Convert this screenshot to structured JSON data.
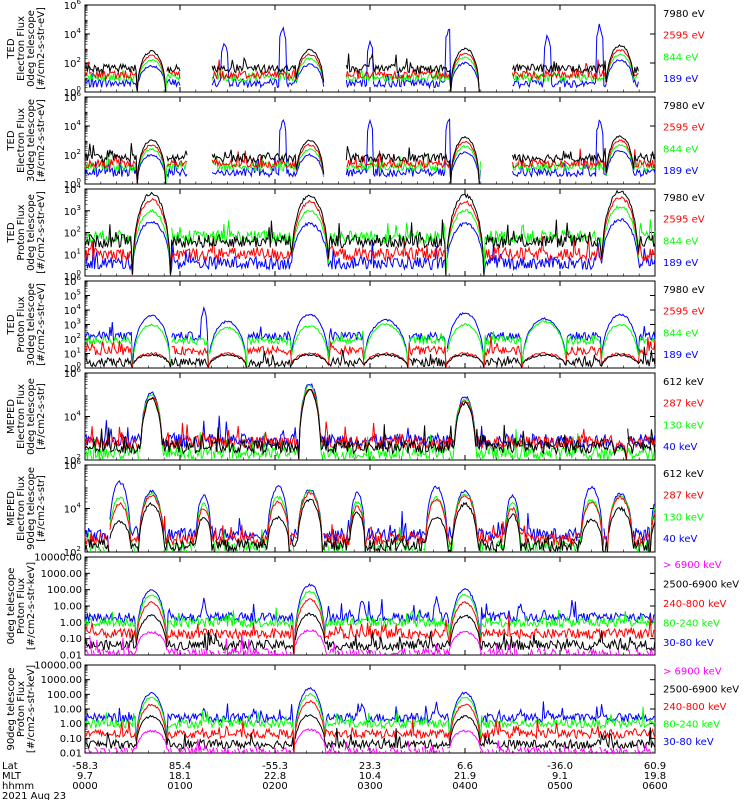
{
  "colors": {
    "black": "#000000",
    "blue": "#0000ff",
    "red": "#ff0000",
    "green": "#00ff00",
    "magenta": "#ff00ff"
  },
  "chart_data": [
    {
      "type": "line",
      "ylabel": [
        "TED",
        "Electron Flux",
        "0deg telescope",
        "[#/cm2-s-str-eV]"
      ],
      "y_scale": "log",
      "ylim": [
        1,
        1000000
      ],
      "y_ticks": [
        {
          "exp": 0,
          "v": 1
        },
        {
          "exp": 2,
          "v": 100
        },
        {
          "exp": 4,
          "v": 10000
        },
        {
          "exp": 6,
          "v": 1000000
        }
      ],
      "legend": [
        {
          "label": "7980 eV",
          "color": "black"
        },
        {
          "label": "2595 eV",
          "color": "red"
        },
        {
          "label": "844 eV",
          "color": "green"
        },
        {
          "label": "189 eV",
          "color": "blue"
        }
      ],
      "humps": [
        {
          "t": 42,
          "w": 9,
          "p": [
            2.8,
            2.5,
            2.2,
            1.8
          ]
        },
        {
          "t": 142,
          "w": 9,
          "p": [
            2.9,
            2.6,
            2.3,
            1.9
          ]
        },
        {
          "t": 240,
          "w": 9,
          "p": [
            3.0,
            2.7,
            2.4,
            2.0
          ]
        },
        {
          "t": 338,
          "w": 9,
          "p": [
            3.2,
            2.9,
            2.6,
            2.2
          ]
        }
      ],
      "spikes": [
        {
          "t": 88,
          "v": 3.6
        },
        {
          "t": 125,
          "v": 4.6
        },
        {
          "t": 180,
          "v": 3.7
        },
        {
          "t": 230,
          "v": 4.7
        },
        {
          "t": 292,
          "v": 4.0
        },
        {
          "t": 325,
          "v": 4.8
        },
        {
          "t": 332,
          "v": 4.2
        }
      ],
      "base": [
        1.6,
        1.2,
        1.0,
        0.6
      ],
      "active": [
        [
          0,
          60
        ],
        [
          80,
          140
        ],
        [
          165,
          240
        ],
        [
          270,
          350
        ]
      ]
    },
    {
      "type": "line",
      "ylabel": [
        "TED",
        "Electron Flux",
        "30deg telescope",
        "[#/cm2-s-str-eV]"
      ],
      "y_scale": "log",
      "ylim": [
        1,
        1000000
      ],
      "y_ticks": [
        {
          "exp": 0,
          "v": 1
        },
        {
          "exp": 2,
          "v": 100
        },
        {
          "exp": 4,
          "v": 10000
        },
        {
          "exp": 6,
          "v": 1000000
        }
      ],
      "legend": [
        {
          "label": "7980 eV",
          "color": "black"
        },
        {
          "label": "2595 eV",
          "color": "red"
        },
        {
          "label": "844 eV",
          "color": "green"
        },
        {
          "label": "189 eV",
          "color": "blue"
        }
      ],
      "humps": [
        {
          "t": 42,
          "w": 9,
          "p": [
            3.0,
            2.7,
            2.4,
            2.0
          ]
        },
        {
          "t": 142,
          "w": 9,
          "p": [
            3.0,
            2.7,
            2.4,
            2.0
          ]
        },
        {
          "t": 240,
          "w": 9,
          "p": [
            3.2,
            2.9,
            2.6,
            2.2
          ]
        },
        {
          "t": 338,
          "w": 9,
          "p": [
            3.3,
            3.0,
            2.7,
            2.3
          ]
        }
      ],
      "spikes": [
        {
          "t": 125,
          "v": 4.6
        },
        {
          "t": 180,
          "v": 4.5
        },
        {
          "t": 230,
          "v": 4.8
        },
        {
          "t": 245,
          "v": 3.8
        },
        {
          "t": 325,
          "v": 4.5
        }
      ],
      "base": [
        1.8,
        1.4,
        1.2,
        0.8
      ],
      "active": [
        [
          0,
          65
        ],
        [
          80,
          150
        ],
        [
          165,
          250
        ],
        [
          270,
          360
        ]
      ]
    },
    {
      "type": "line",
      "ylabel": [
        "TED",
        "Proton Flux",
        "0deg telescope",
        "[#/cm2-s-str-eV]"
      ],
      "y_scale": "log",
      "ylim": [
        1,
        10000
      ],
      "y_ticks": [
        {
          "exp": 0,
          "v": 1
        },
        {
          "exp": 1,
          "v": 10
        },
        {
          "exp": 2,
          "v": 100
        },
        {
          "exp": 3,
          "v": 1000
        },
        {
          "exp": 4,
          "v": 10000
        }
      ],
      "legend": [
        {
          "label": "7980 eV",
          "color": "black"
        },
        {
          "label": "2595 eV",
          "color": "red"
        },
        {
          "label": "844 eV",
          "color": "green"
        },
        {
          "label": "189 eV",
          "color": "blue"
        }
      ],
      "humps": [
        {
          "t": 42,
          "w": 12,
          "p": [
            3.8,
            3.5,
            3.0,
            2.5
          ]
        },
        {
          "t": 142,
          "w": 12,
          "p": [
            3.7,
            3.4,
            3.0,
            2.4
          ]
        },
        {
          "t": 240,
          "w": 12,
          "p": [
            3.7,
            3.4,
            3.0,
            2.4
          ]
        },
        {
          "t": 338,
          "w": 12,
          "p": [
            3.9,
            3.6,
            3.2,
            2.6
          ]
        }
      ],
      "spikes": [],
      "base": [
        1.6,
        1.0,
        1.8,
        0.6
      ],
      "active": [
        [
          0,
          360
        ]
      ]
    },
    {
      "type": "line",
      "ylabel": [
        "TED",
        "Proton Flux",
        "30deg telescope",
        "[#/cm2-s-str-eV]"
      ],
      "y_scale": "log",
      "ylim": [
        1,
        1000000
      ],
      "y_ticks": [
        {
          "exp": 0,
          "v": 1
        },
        {
          "exp": 1,
          "v": 10
        },
        {
          "exp": 2,
          "v": 100
        },
        {
          "exp": 3,
          "v": 1000
        },
        {
          "exp": 4,
          "v": 10000
        },
        {
          "exp": 5,
          "v": 100000
        },
        {
          "exp": 6,
          "v": 1000000
        }
      ],
      "legend": [
        {
          "label": "7980 eV",
          "color": "black"
        },
        {
          "label": "2595 eV",
          "color": "red"
        },
        {
          "label": "844 eV",
          "color": "green"
        },
        {
          "label": "189 eV",
          "color": "blue"
        }
      ],
      "humps": [
        {
          "t": 42,
          "w": 12,
          "p": [
            0.9,
            1.0,
            3.0,
            3.6
          ]
        },
        {
          "t": 90,
          "w": 12,
          "p": [
            0.9,
            1.0,
            2.8,
            3.2
          ]
        },
        {
          "t": 142,
          "w": 12,
          "p": [
            0.9,
            1.0,
            2.9,
            3.7
          ]
        },
        {
          "t": 190,
          "w": 14,
          "p": [
            0.9,
            1.0,
            3.0,
            3.3
          ]
        },
        {
          "t": 240,
          "w": 12,
          "p": [
            0.9,
            1.0,
            3.0,
            3.8
          ]
        },
        {
          "t": 290,
          "w": 14,
          "p": [
            0.9,
            1.0,
            3.2,
            3.4
          ]
        },
        {
          "t": 338,
          "w": 12,
          "p": [
            0.9,
            1.0,
            3.0,
            3.7
          ]
        }
      ],
      "spikes": [
        {
          "t": 75,
          "v": 4.3
        }
      ],
      "base": [
        0.4,
        1.2,
        1.9,
        2.2
      ],
      "active": [
        [
          0,
          360
        ]
      ]
    },
    {
      "type": "line",
      "ylabel": [
        "MEPED",
        "Electron Flux",
        "0deg telescope",
        "[#/cm2-s-str]"
      ],
      "y_scale": "log",
      "ylim": [
        100,
        1000000
      ],
      "y_ticks": [
        {
          "exp": 2,
          "v": 100
        },
        {
          "exp": 4,
          "v": 10000
        },
        {
          "exp": 6,
          "v": 1000000
        }
      ],
      "legend": [
        {
          "label": "612 keV",
          "color": "black"
        },
        {
          "label": "287 keV",
          "color": "red"
        },
        {
          "label": "130 keV",
          "color": "green"
        },
        {
          "label": "40 keV",
          "color": "blue"
        }
      ],
      "humps": [
        {
          "t": 42,
          "w": 7,
          "p": [
            4.8,
            4.9,
            5.0,
            5.1
          ]
        },
        {
          "t": 142,
          "w": 7,
          "p": [
            5.2,
            5.3,
            5.4,
            5.5
          ]
        },
        {
          "t": 240,
          "w": 7,
          "p": [
            4.6,
            4.7,
            4.8,
            4.9
          ]
        },
        {
          "t": 338,
          "w": 4,
          "p": [
            2.6,
            2.8,
            2.5,
            2.7
          ]
        }
      ],
      "spikes": [],
      "base": [
        2.6,
        2.8,
        2.3,
        2.9
      ],
      "active": [
        [
          0,
          360
        ]
      ]
    },
    {
      "type": "line",
      "ylabel": [
        "MEPED",
        "Electron Flux",
        "90deg telescope",
        "[#/cm2-s-str]"
      ],
      "y_scale": "log",
      "ylim": [
        100,
        1000000
      ],
      "y_ticks": [
        {
          "exp": 2,
          "v": 100
        },
        {
          "exp": 4,
          "v": 10000
        },
        {
          "exp": 6,
          "v": 1000000
        }
      ],
      "legend": [
        {
          "label": "612 keV",
          "color": "black"
        },
        {
          "label": "287 keV",
          "color": "red"
        },
        {
          "label": "130 keV",
          "color": "green"
        },
        {
          "label": "40 keV",
          "color": "blue"
        }
      ],
      "humps": [
        {
          "t": 22,
          "w": 7,
          "p": [
            3.4,
            4.2,
            4.5,
            5.2
          ]
        },
        {
          "t": 42,
          "w": 8,
          "p": [
            4.2,
            4.6,
            4.7,
            4.8
          ]
        },
        {
          "t": 75,
          "w": 5,
          "p": [
            3.6,
            4.0,
            4.2,
            4.6
          ]
        },
        {
          "t": 122,
          "w": 7,
          "p": [
            3.6,
            4.3,
            4.5,
            5.0
          ]
        },
        {
          "t": 142,
          "w": 8,
          "p": [
            4.4,
            4.7,
            4.8,
            4.9
          ]
        },
        {
          "t": 172,
          "w": 5,
          "p": [
            3.8,
            4.1,
            4.3,
            4.7
          ]
        },
        {
          "t": 222,
          "w": 7,
          "p": [
            3.6,
            4.4,
            4.5,
            5.0
          ]
        },
        {
          "t": 240,
          "w": 8,
          "p": [
            4.2,
            4.6,
            4.7,
            4.8
          ]
        },
        {
          "t": 270,
          "w": 5,
          "p": [
            3.7,
            4.0,
            4.3,
            4.6
          ]
        },
        {
          "t": 320,
          "w": 7,
          "p": [
            3.5,
            4.3,
            4.4,
            5.0
          ]
        },
        {
          "t": 338,
          "w": 8,
          "p": [
            4.0,
            4.5,
            4.6,
            4.7
          ]
        },
        {
          "t": 362,
          "w": 5,
          "p": [
            3.5,
            3.9,
            4.2,
            4.5
          ]
        }
      ],
      "spikes": [],
      "base": [
        2.3,
        2.6,
        2.2,
        2.8
      ],
      "active": [
        [
          0,
          360
        ]
      ]
    },
    {
      "type": "line",
      "ylabel": [
        "0deg telescope",
        "Proton Flux",
        "[#/cm2-s-str-keV]"
      ],
      "y_scale": "log",
      "ylim": [
        0.01,
        10000
      ],
      "y_ticks": [
        {
          "exp": -2,
          "v": 0.01
        },
        {
          "exp": -1,
          "v": 0.1
        },
        {
          "exp": 0,
          "v": 1
        },
        {
          "exp": 1,
          "v": 10
        },
        {
          "exp": 2,
          "v": 100
        },
        {
          "exp": 3,
          "v": 1000
        },
        {
          "exp": 4,
          "v": 10000
        }
      ],
      "y_tick_labels": [
        "0.01",
        "0.10",
        "1.00",
        "10.00",
        "100.00",
        "1000.00",
        "10000.00"
      ],
      "legend": [
        {
          "label": "> 6900 keV",
          "color": "magenta"
        },
        {
          "label": "2500-6900 keV",
          "color": "black"
        },
        {
          "label": "240-800 keV",
          "color": "red"
        },
        {
          "label": "80-240 keV",
          "color": "green"
        },
        {
          "label": "30-80 keV",
          "color": "blue"
        }
      ],
      "humps": [
        {
          "t": 42,
          "w": 10,
          "p": [
            -0.6,
            0.4,
            1.2,
            1.7,
            2.0
          ]
        },
        {
          "t": 142,
          "w": 10,
          "p": [
            -0.5,
            0.5,
            1.4,
            1.9,
            2.3
          ]
        },
        {
          "t": 240,
          "w": 10,
          "p": [
            -0.6,
            0.4,
            1.2,
            1.7,
            2.0
          ]
        }
      ],
      "spikes": [
        {
          "t": 75,
          "v": 1.5
        },
        {
          "t": 175,
          "v": 1.6
        },
        {
          "t": 222,
          "v": 1.7
        },
        {
          "t": 275,
          "v": 1.4
        },
        {
          "t": 290,
          "v": 1.0
        },
        {
          "t": 335,
          "v": 0.7
        }
      ],
      "base": [
        -1.9,
        -1.4,
        -0.7,
        0.0,
        0.3
      ],
      "active": [
        [
          0,
          360
        ]
      ]
    },
    {
      "type": "line",
      "ylabel": [
        "90deg telescope",
        "Proton Flux",
        "[#/cm2-s-str-keV]"
      ],
      "y_scale": "log",
      "ylim": [
        0.01,
        10000
      ],
      "y_ticks": [
        {
          "exp": -2,
          "v": 0.01
        },
        {
          "exp": -1,
          "v": 0.1
        },
        {
          "exp": 0,
          "v": 1
        },
        {
          "exp": 1,
          "v": 10
        },
        {
          "exp": 2,
          "v": 100
        },
        {
          "exp": 3,
          "v": 1000
        },
        {
          "exp": 4,
          "v": 10000
        }
      ],
      "y_tick_labels": [
        "0.01",
        "0.10",
        "1.00",
        "10.00",
        "100.00",
        "1000.00",
        "10000.00"
      ],
      "legend": [
        {
          "label": "> 6900 keV",
          "color": "magenta"
        },
        {
          "label": "2500-6900 keV",
          "color": "black"
        },
        {
          "label": "240-800 keV",
          "color": "red"
        },
        {
          "label": "80-240 keV",
          "color": "green"
        },
        {
          "label": "30-80 keV",
          "color": "blue"
        }
      ],
      "humps": [
        {
          "t": 42,
          "w": 10,
          "p": [
            -0.5,
            0.5,
            1.3,
            1.8,
            2.1
          ]
        },
        {
          "t": 142,
          "w": 10,
          "p": [
            -0.4,
            0.6,
            1.5,
            2.0,
            2.4
          ]
        },
        {
          "t": 240,
          "w": 10,
          "p": [
            -0.5,
            0.5,
            1.3,
            1.8,
            2.1
          ]
        }
      ],
      "spikes": [
        {
          "t": 75,
          "v": 1.3
        },
        {
          "t": 175,
          "v": 1.6
        },
        {
          "t": 222,
          "v": 1.5
        },
        {
          "t": 275,
          "v": 1.2
        },
        {
          "t": 292,
          "v": 1.1
        },
        {
          "t": 345,
          "v": 0.8
        }
      ],
      "base": [
        -1.9,
        -1.4,
        -0.7,
        0.0,
        0.4
      ],
      "active": [
        [
          0,
          360
        ]
      ]
    }
  ],
  "xaxis": {
    "range_minutes": [
      0,
      360
    ],
    "ticks_minutes": [
      0,
      60,
      120,
      180,
      240,
      300,
      360
    ],
    "row_labels": [
      "Lat",
      "MLT",
      "hhmm"
    ],
    "rows": [
      [
        "-58.3",
        "85.4",
        "-55.3",
        "23.3",
        "6.6",
        "-36.0",
        "60.9"
      ],
      [
        "9.7",
        "18.1",
        "22.8",
        "10.4",
        "21.9",
        "9.1",
        "19.8"
      ],
      [
        "0000",
        "0100",
        "0200",
        "0300",
        "0400",
        "0500",
        "0600"
      ]
    ],
    "date": "2021 Aug 23"
  }
}
